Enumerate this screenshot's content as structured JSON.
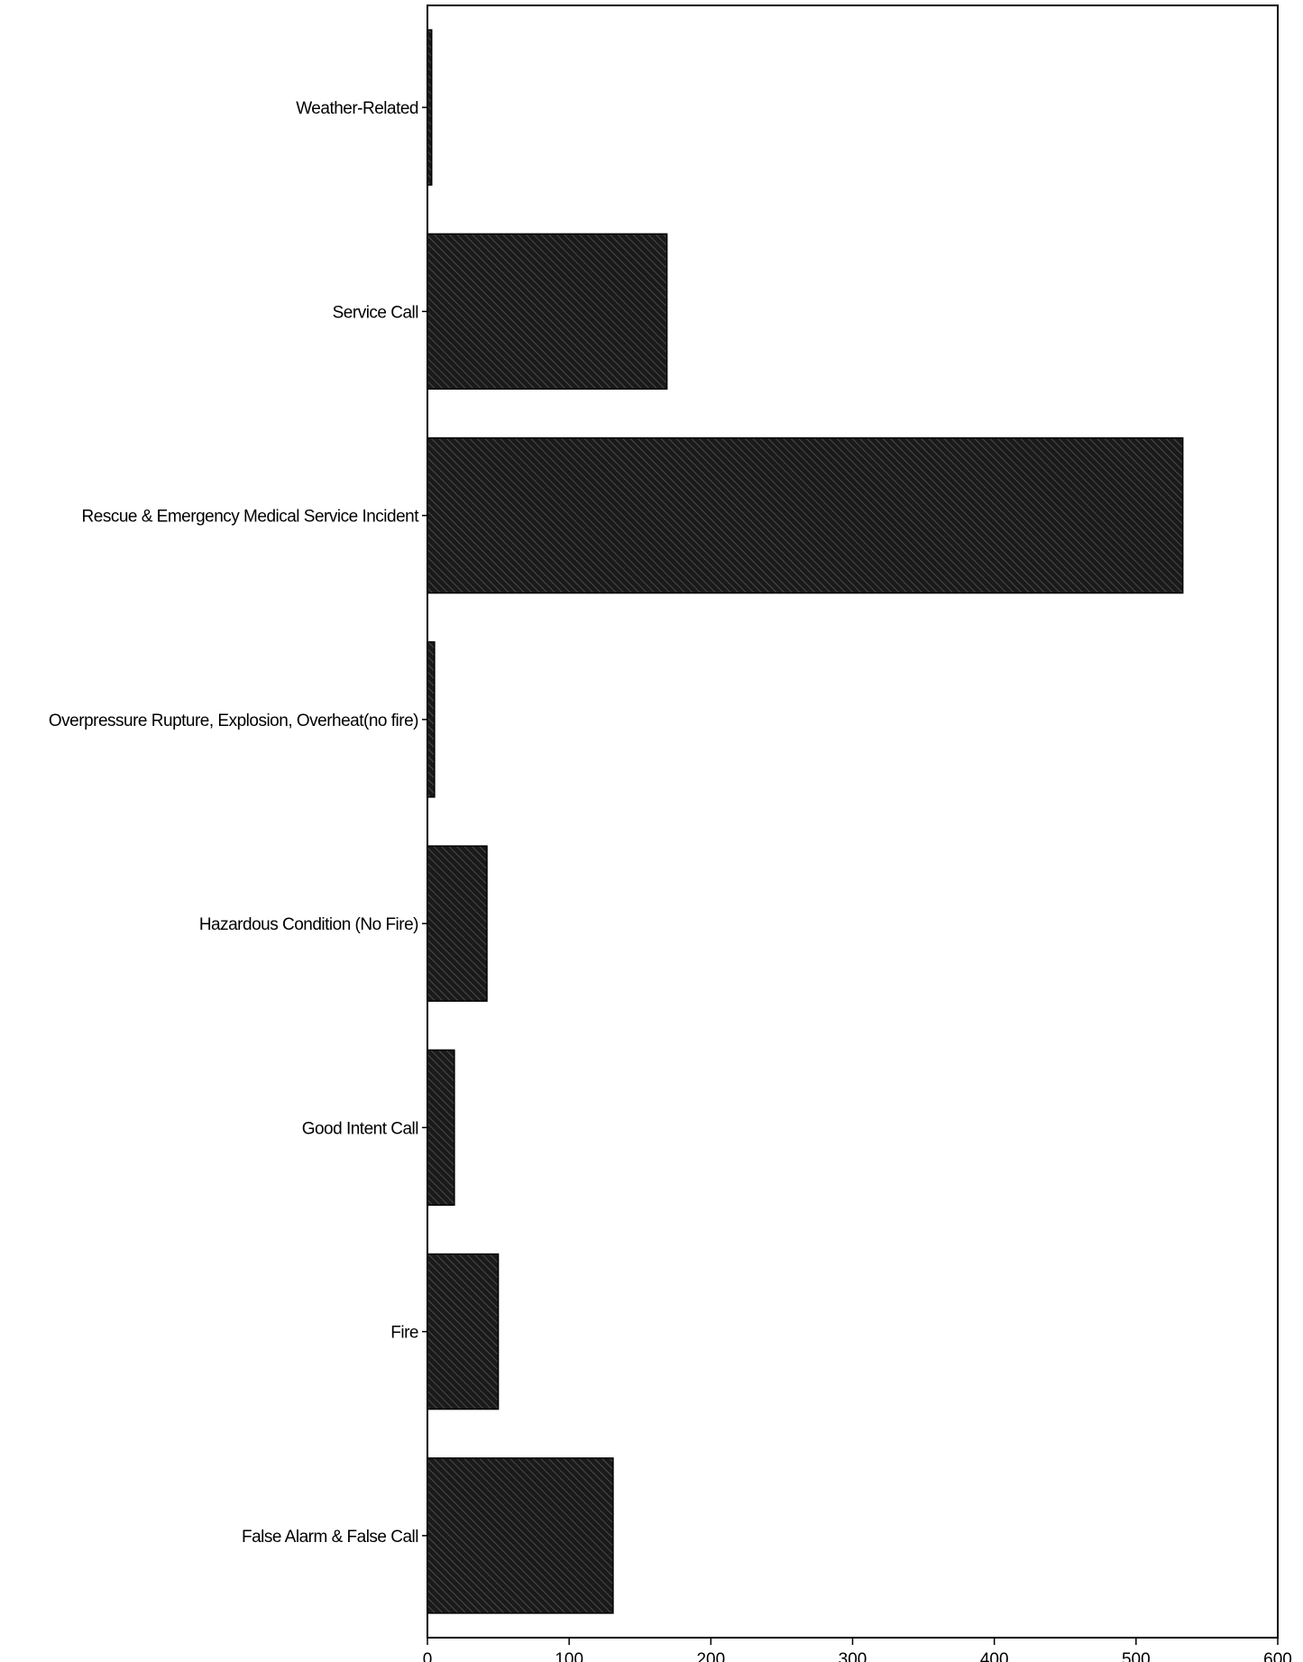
{
  "chart_data": {
    "type": "bar",
    "orientation": "horizontal",
    "categories": [
      "Weather-Related",
      "Service Call",
      "Rescue & Emergency Medical Service Incident",
      "Overpressure Rupture, Explosion, Overheat(no fire)",
      "Hazardous Condition (No Fire)",
      "Good Intent Call",
      "Fire",
      "False Alarm & False Call"
    ],
    "values": [
      3,
      169,
      533,
      5,
      42,
      19,
      50,
      131
    ],
    "xlim": [
      0,
      600
    ],
    "x_ticks": [
      "0",
      "100",
      "200",
      "300",
      "400",
      "500",
      "600"
    ],
    "title": "",
    "xlabel": "",
    "ylabel": "",
    "grid": false,
    "legend": "none",
    "bar_fill": "#1a1a1a",
    "hatch_color": "#5a5a5a"
  }
}
